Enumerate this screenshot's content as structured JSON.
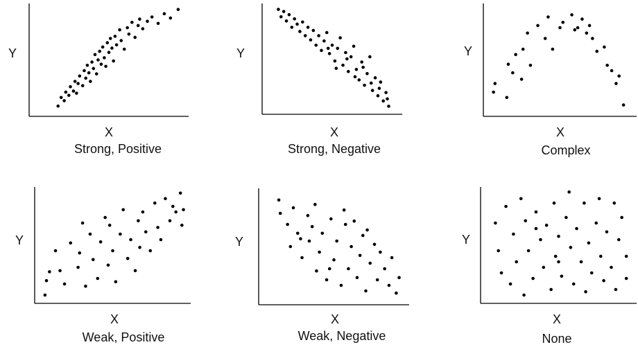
{
  "chart_data": [
    {
      "type": "scatter",
      "title": "Strong, Positive",
      "x_label": "X",
      "y_label": "Y",
      "color": "#000000",
      "xlim": [
        0,
        100
      ],
      "ylim": [
        0,
        100
      ],
      "x": [
        17,
        19,
        21,
        22,
        24,
        25,
        27,
        28,
        29,
        30,
        31,
        33,
        34,
        35,
        36,
        37,
        38,
        39,
        40,
        41,
        42,
        43,
        44,
        45,
        46,
        47,
        48,
        49,
        50,
        51,
        52,
        53,
        54,
        55,
        57,
        58,
        60,
        62,
        63,
        65,
        67,
        69,
        70,
        72,
        75,
        78,
        82,
        86,
        90,
        95
      ],
      "y": [
        7,
        15,
        12,
        20,
        17,
        25,
        21,
        30,
        19,
        28,
        35,
        26,
        40,
        33,
        45,
        38,
        30,
        48,
        42,
        55,
        37,
        50,
        58,
        46,
        62,
        52,
        44,
        66,
        57,
        70,
        61,
        49,
        72,
        64,
        78,
        68,
        60,
        80,
        74,
        85,
        71,
        82,
        88,
        79,
        86,
        90,
        84,
        93,
        89,
        97
      ]
    },
    {
      "type": "scatter",
      "title": "Strong, Negative",
      "x_label": "X",
      "y_label": "Y",
      "color": "#000000",
      "xlim": [
        0,
        100
      ],
      "ylim": [
        0,
        100
      ],
      "x": [
        10,
        12,
        14,
        16,
        18,
        20,
        22,
        24,
        26,
        28,
        30,
        32,
        34,
        36,
        38,
        40,
        42,
        44,
        46,
        48,
        50,
        52,
        54,
        56,
        58,
        60,
        62,
        64,
        66,
        68,
        70,
        72,
        74,
        76,
        78,
        80,
        82,
        84,
        86,
        88,
        90,
        92,
        47,
        53,
        61,
        67,
        73,
        79,
        85,
        91
      ],
      "y": [
        97,
        90,
        95,
        86,
        92,
        80,
        88,
        83,
        76,
        85,
        72,
        80,
        68,
        77,
        63,
        72,
        58,
        67,
        75,
        55,
        63,
        48,
        60,
        70,
        44,
        56,
        38,
        52,
        62,
        40,
        30,
        47,
        25,
        36,
        52,
        20,
        32,
        15,
        28,
        10,
        18,
        5,
        60,
        41,
        50,
        33,
        42,
        27,
        22,
        12
      ]
    },
    {
      "type": "scatter",
      "title": "Complex",
      "x_label": "X",
      "y_label": "Y",
      "color": "#000000",
      "xlim": [
        0,
        100
      ],
      "ylim": [
        0,
        100
      ],
      "x": [
        5,
        6,
        14,
        15,
        18,
        20,
        24,
        25,
        28,
        30,
        35,
        40,
        42,
        45,
        50,
        52,
        58,
        60,
        62,
        65,
        68,
        70,
        72,
        75,
        80,
        82,
        85,
        88,
        90,
        93
      ],
      "y": [
        20,
        28,
        15,
        46,
        38,
        55,
        32,
        60,
        75,
        45,
        82,
        70,
        90,
        60,
        80,
        85,
        92,
        78,
        80,
        88,
        75,
        82,
        70,
        58,
        62,
        45,
        40,
        28,
        35,
        8
      ]
    },
    {
      "type": "scatter",
      "title": "Weak, Positive",
      "x_label": "X",
      "y_label": "Y",
      "color": "#000000",
      "xlim": [
        0,
        100
      ],
      "ylim": [
        0,
        100
      ],
      "x": [
        5,
        6,
        8,
        12,
        15,
        18,
        22,
        27,
        28,
        30,
        32,
        35,
        37,
        40,
        42,
        45,
        47,
        48,
        50,
        52,
        55,
        57,
        60,
        62,
        65,
        67,
        68,
        70,
        72,
        75,
        78,
        80,
        82,
        85,
        88,
        90,
        92,
        95,
        97,
        96
      ],
      "y": [
        5,
        18,
        26,
        45,
        27,
        15,
        52,
        30,
        43,
        70,
        13,
        60,
        37,
        20,
        53,
        75,
        32,
        68,
        45,
        17,
        60,
        82,
        38,
        55,
        27,
        72,
        48,
        80,
        62,
        45,
        88,
        66,
        55,
        92,
        72,
        85,
        80,
        97,
        82,
        68
      ]
    },
    {
      "type": "scatter",
      "title": "Weak, Negative",
      "x_label": "X",
      "y_label": "Y",
      "color": "#000000",
      "xlim": [
        0,
        100
      ],
      "ylim": [
        0,
        100
      ],
      "x": [
        12,
        13,
        18,
        20,
        22,
        25,
        28,
        32,
        33,
        35,
        38,
        40,
        42,
        45,
        48,
        50,
        52,
        55,
        58,
        60,
        62,
        64,
        66,
        68,
        70,
        72,
        75,
        78,
        80,
        82,
        85,
        88,
        90,
        93,
        95,
        57,
        47,
        37,
        27,
        73
      ],
      "y": [
        92,
        80,
        70,
        50,
        85,
        62,
        40,
        78,
        55,
        68,
        28,
        45,
        62,
        20,
        75,
        38,
        55,
        15,
        70,
        30,
        50,
        73,
        22,
        42,
        60,
        10,
        35,
        52,
        20,
        45,
        30,
        15,
        40,
        8,
        22,
        83,
        30,
        88,
        57,
        65
      ]
    },
    {
      "type": "scatter",
      "title": "None",
      "x_label": "X",
      "y_label": "Y",
      "color": "#000000",
      "xlim": [
        0,
        100
      ],
      "ylim": [
        0,
        100
      ],
      "x": [
        8,
        10,
        12,
        15,
        18,
        20,
        22,
        25,
        27,
        28,
        30,
        33,
        35,
        38,
        40,
        42,
        45,
        47,
        48,
        50,
        52,
        55,
        57,
        58,
        60,
        62,
        65,
        67,
        68,
        70,
        72,
        75,
        77,
        78,
        80,
        82,
        85,
        87,
        88,
        90,
        92,
        95,
        95,
        50,
        35
      ],
      "y": [
        70,
        45,
        25,
        85,
        15,
        60,
        35,
        92,
        5,
        72,
        45,
        20,
        80,
        55,
        30,
        68,
        10,
        88,
        40,
        58,
        22,
        75,
        98,
        48,
        15,
        65,
        35,
        88,
        8,
        52,
        25,
        70,
        92,
        40,
        18,
        62,
        30,
        88,
        10,
        55,
        75,
        20,
        40,
        35,
        65
      ]
    }
  ]
}
